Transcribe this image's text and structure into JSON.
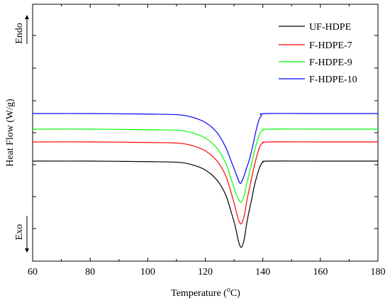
{
  "chart_data": {
    "type": "line",
    "title": "",
    "xlabel_main": "Temperature (",
    "xlabel_sup": "o",
    "xlabel_end": "C)",
    "ylabel": "Heat Flow (W/g)",
    "endo_label": "Endo",
    "exo_label": "Exo",
    "xlim": [
      60,
      180
    ],
    "x_ticks": [
      60,
      80,
      100,
      120,
      140,
      160,
      180
    ],
    "y_tick_labels": false,
    "grid": false,
    "legend_placement": "top-right",
    "series": [
      {
        "name": "UF-HDPE",
        "color": "#000000",
        "points": [
          [
            60,
            0.0
          ],
          [
            80,
            0.0
          ],
          [
            100,
            0.05
          ],
          [
            110,
            0.1
          ],
          [
            115,
            0.3
          ],
          [
            120,
            0.8
          ],
          [
            124,
            1.7
          ],
          [
            127,
            3.0
          ],
          [
            129,
            4.6
          ],
          [
            130.5,
            6.0
          ],
          [
            131.5,
            7.2
          ],
          [
            132.5,
            7.8
          ],
          [
            133.5,
            7.1
          ],
          [
            134.3,
            5.8
          ],
          [
            135,
            4.8
          ],
          [
            136,
            3.6
          ],
          [
            137,
            2.3
          ],
          [
            138,
            1.3
          ],
          [
            139,
            0.5
          ],
          [
            140,
            0.1
          ],
          [
            142,
            0.0
          ],
          [
            160,
            0.0
          ],
          [
            180,
            0.0
          ]
        ]
      },
      {
        "name": "F-HDPE-7",
        "color": "#ff0000",
        "points": [
          [
            60,
            0.0
          ],
          [
            80,
            0.0
          ],
          [
            100,
            0.05
          ],
          [
            110,
            0.1
          ],
          [
            115,
            0.3
          ],
          [
            120,
            0.8
          ],
          [
            124,
            1.7
          ],
          [
            127,
            3.0
          ],
          [
            129,
            4.6
          ],
          [
            130.5,
            6.0
          ],
          [
            131.5,
            7.0
          ],
          [
            132.5,
            7.4
          ],
          [
            133.5,
            6.7
          ],
          [
            134.3,
            5.5
          ],
          [
            135,
            4.6
          ],
          [
            136,
            3.4
          ],
          [
            137,
            2.2
          ],
          [
            138,
            1.2
          ],
          [
            139,
            0.4
          ],
          [
            140,
            0.1
          ],
          [
            142,
            0.0
          ],
          [
            160,
            0.0
          ],
          [
            180,
            0.0
          ]
        ]
      },
      {
        "name": "F-HDPE-9",
        "color": "#00ff00",
        "points": [
          [
            60,
            0.0
          ],
          [
            80,
            0.0
          ],
          [
            100,
            0.05
          ],
          [
            110,
            0.1
          ],
          [
            115,
            0.3
          ],
          [
            120,
            0.8
          ],
          [
            124,
            1.7
          ],
          [
            127,
            3.0
          ],
          [
            129,
            4.5
          ],
          [
            130.5,
            5.7
          ],
          [
            131.5,
            6.3
          ],
          [
            132.5,
            6.6
          ],
          [
            133.5,
            6.0
          ],
          [
            134.3,
            5.0
          ],
          [
            135,
            4.3
          ],
          [
            136,
            3.2
          ],
          [
            137,
            2.1
          ],
          [
            138,
            1.1
          ],
          [
            139,
            0.4
          ],
          [
            140,
            0.1
          ],
          [
            142,
            0.0
          ],
          [
            160,
            0.0
          ],
          [
            180,
            0.0
          ]
        ]
      },
      {
        "name": "F-HDPE-10",
        "color": "#0000ff",
        "points": [
          [
            60,
            0.0
          ],
          [
            80,
            0.0
          ],
          [
            100,
            0.05
          ],
          [
            110,
            0.1
          ],
          [
            115,
            0.3
          ],
          [
            120,
            0.8
          ],
          [
            124,
            1.7
          ],
          [
            127,
            3.0
          ],
          [
            129,
            4.3
          ],
          [
            130.5,
            5.3
          ],
          [
            131.5,
            6.0
          ],
          [
            132.3,
            6.3
          ],
          [
            133.5,
            5.6
          ],
          [
            134.5,
            4.8
          ],
          [
            135.5,
            4.0
          ],
          [
            136.5,
            2.9
          ],
          [
            137.5,
            1.7
          ],
          [
            138.5,
            0.7
          ],
          [
            139.5,
            0.2
          ],
          [
            141,
            0.0
          ],
          [
            160,
            0.0
          ],
          [
            180,
            0.0
          ]
        ]
      }
    ]
  }
}
